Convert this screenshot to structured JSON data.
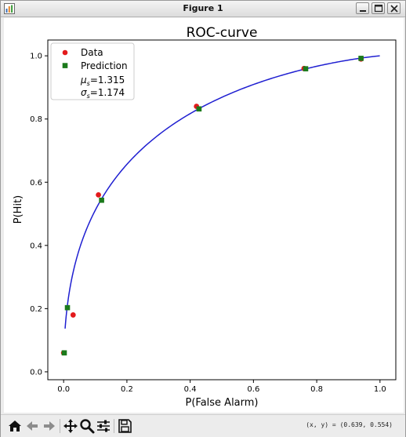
{
  "window": {
    "title": "Figure 1"
  },
  "chart_data": {
    "type": "scatter",
    "title": "ROC-curve",
    "xlabel": "P(False Alarm)",
    "ylabel": "P(Hit)",
    "xlim": [
      -0.05,
      1.05
    ],
    "ylim": [
      -0.025,
      1.05
    ],
    "xticks": [
      "0.0",
      "0.2",
      "0.4",
      "0.6",
      "0.8",
      "1.0"
    ],
    "yticks": [
      "0.0",
      "0.2",
      "0.4",
      "0.6",
      "0.8",
      "1.0"
    ],
    "legend": {
      "position": "upper-left",
      "entries": [
        {
          "label": "Data",
          "marker": "circle",
          "color": "#e31a1c"
        },
        {
          "label": "Prediction",
          "marker": "square",
          "color": "#1b7a1b"
        }
      ],
      "params": [
        {
          "sym": "μ",
          "sub": "s",
          "value": "=1.315"
        },
        {
          "sym": "σ",
          "sub": "s",
          "value": "=1.174"
        }
      ]
    },
    "series": [
      {
        "name": "Data",
        "marker": "circle",
        "color": "#e31a1c",
        "points": [
          [
            0.0,
            0.06
          ],
          [
            0.03,
            0.18
          ],
          [
            0.11,
            0.56
          ],
          [
            0.42,
            0.84
          ],
          [
            0.76,
            0.96
          ],
          [
            0.94,
            0.99
          ]
        ]
      },
      {
        "name": "Prediction",
        "marker": "square",
        "color": "#1b7a1b",
        "points": [
          [
            0.002,
            0.06
          ],
          [
            0.012,
            0.203
          ],
          [
            0.12,
            0.543
          ],
          [
            0.428,
            0.832
          ],
          [
            0.765,
            0.959
          ],
          [
            0.94,
            0.992
          ]
        ]
      }
    ],
    "curve": {
      "color": "#1f1fd1",
      "mu": 1.315,
      "sigma": 1.174
    }
  },
  "statusbar": {
    "coords": "(x, y) = (0.639, 0.554)"
  },
  "toolbar": {
    "buttons": [
      {
        "name": "home-button",
        "icon": "home-icon"
      },
      {
        "name": "back-button",
        "icon": "arrow-left-icon"
      },
      {
        "name": "forward-button",
        "icon": "arrow-right-icon"
      },
      {
        "name": "pan-button",
        "icon": "move-icon"
      },
      {
        "name": "zoom-button",
        "icon": "magnifier-icon"
      },
      {
        "name": "configure-subplots-button",
        "icon": "sliders-icon"
      },
      {
        "name": "save-button",
        "icon": "floppy-icon"
      }
    ]
  }
}
